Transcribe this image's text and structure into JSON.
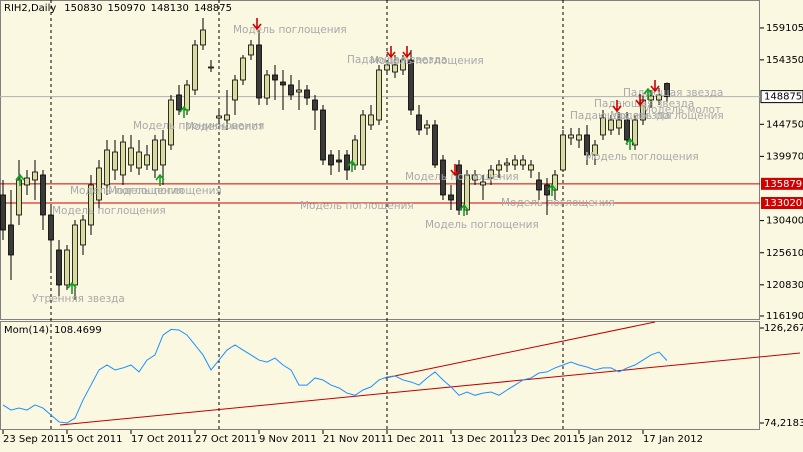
{
  "chart_data": [
    {
      "type": "candlestick",
      "title": "RIH2,Daily",
      "categories": [
        "23 Sep 2011",
        null,
        null,
        null,
        null,
        null,
        null,
        null,
        "5 Oct 2011",
        null,
        null,
        null,
        null,
        null,
        null,
        null,
        "17 Oct 2011",
        null,
        null,
        null,
        null,
        null,
        null,
        null,
        "27 Oct 2011",
        null,
        null,
        null,
        null,
        null,
        null,
        null,
        "9 Nov 2011",
        null,
        null,
        null,
        null,
        null,
        null,
        null,
        "21 Nov 2011",
        null,
        null,
        null,
        null,
        null,
        null,
        null,
        "1 Dec 2011",
        null,
        null,
        null,
        null,
        null,
        null,
        null,
        "13 Dec 2011",
        null,
        null,
        null,
        null,
        null,
        null,
        null,
        "23 Dec 2011",
        null,
        null,
        null,
        null,
        null,
        null,
        null,
        "5 Jan 2012",
        null,
        null,
        null,
        null,
        null,
        null,
        null,
        "17 Jan 2012",
        null,
        null,
        null
      ],
      "ohlc": [
        [
          134220,
          136450,
          127510,
          129000
        ],
        [
          129750,
          134960,
          121550,
          125280
        ],
        [
          131240,
          139430,
          129750,
          136450
        ],
        [
          135710,
          137940,
          134220,
          136750
        ],
        [
          136450,
          139430,
          133470,
          137640
        ],
        [
          137200,
          137940,
          129000,
          131240
        ],
        [
          131240,
          132730,
          123040,
          127510
        ],
        [
          126020,
          127510,
          118570,
          120810
        ],
        [
          120810,
          126770,
          120060,
          126020
        ],
        [
          120810,
          130490,
          118570,
          129750
        ],
        [
          126770,
          131240,
          125280,
          130490
        ],
        [
          129750,
          137200,
          128260,
          135710
        ],
        [
          133470,
          139430,
          131980,
          138240
        ],
        [
          135710,
          142410,
          134220,
          140920
        ],
        [
          137940,
          142410,
          136450,
          140620
        ],
        [
          137200,
          143160,
          135710,
          142110
        ],
        [
          138690,
          143160,
          137640,
          141220
        ],
        [
          138240,
          142410,
          137200,
          140620
        ],
        [
          138690,
          141670,
          137940,
          140180
        ],
        [
          137940,
          143160,
          136750,
          142410
        ],
        [
          138690,
          143900,
          135710,
          142410
        ],
        [
          141670,
          149120,
          140920,
          148370
        ],
        [
          149120,
          150610,
          146140,
          146880
        ],
        [
          146880,
          151350,
          146140,
          150610
        ],
        [
          149860,
          157310,
          149120,
          156570
        ],
        [
          156570,
          160590,
          155820,
          158800
        ],
        [
          153140,
          154330,
          152540,
          153290
        ],
        [
          145690,
          146880,
          144650,
          145990
        ],
        [
          145390,
          149860,
          143900,
          146140
        ],
        [
          148370,
          152100,
          146140,
          151350
        ],
        [
          151350,
          155080,
          150610,
          154630
        ],
        [
          155080,
          157310,
          154330,
          156570
        ],
        [
          156570,
          158800,
          147630,
          148670
        ],
        [
          148670,
          152840,
          147630,
          152100
        ],
        [
          152100,
          153590,
          148370,
          151350
        ],
        [
          151050,
          152840,
          146880,
          150610
        ],
        [
          150610,
          152100,
          148370,
          149120
        ],
        [
          149560,
          151350,
          146880,
          149860
        ],
        [
          149860,
          150610,
          147630,
          148670
        ],
        [
          148370,
          149120,
          143900,
          146880
        ],
        [
          146880,
          147630,
          138690,
          139430
        ],
        [
          140180,
          140920,
          137200,
          138690
        ],
        [
          139430,
          140920,
          137640,
          139130
        ],
        [
          140180,
          140920,
          136450,
          137940
        ],
        [
          138690,
          143160,
          137940,
          142410
        ],
        [
          138690,
          146880,
          137940,
          146140
        ],
        [
          144650,
          147630,
          143900,
          146140
        ],
        [
          145390,
          153590,
          144650,
          152840
        ],
        [
          152840,
          154330,
          152100,
          153590
        ],
        [
          152540,
          155080,
          151650,
          153590
        ],
        [
          152840,
          155080,
          152100,
          154330
        ],
        [
          154330,
          155820,
          146140,
          146880
        ],
        [
          146140,
          147630,
          143160,
          143900
        ],
        [
          144200,
          145390,
          143160,
          144650
        ],
        [
          144650,
          145390,
          138240,
          138690
        ],
        [
          139430,
          140180,
          133470,
          134220
        ],
        [
          134220,
          135710,
          131980,
          133470
        ],
        [
          138690,
          139430,
          131240,
          131980
        ],
        [
          131980,
          137940,
          131240,
          137200
        ],
        [
          136450,
          137940,
          135710,
          137200
        ],
        [
          135710,
          137200,
          133470,
          136150
        ],
        [
          136750,
          138690,
          135710,
          137940
        ],
        [
          137940,
          139430,
          136750,
          138690
        ],
        [
          138690,
          139730,
          137640,
          138980
        ],
        [
          138690,
          140180,
          137940,
          139430
        ],
        [
          138690,
          140180,
          137940,
          139430
        ],
        [
          137940,
          139430,
          136750,
          138690
        ],
        [
          136450,
          137640,
          133470,
          134960
        ],
        [
          135710,
          136750,
          131240,
          134220
        ],
        [
          134960,
          137940,
          133470,
          137200
        ],
        [
          137940,
          143900,
          137640,
          143160
        ],
        [
          142710,
          144200,
          141670,
          143160
        ],
        [
          142410,
          144200,
          141220,
          143160
        ],
        [
          143160,
          144650,
          138690,
          140180
        ],
        [
          140180,
          142410,
          138690,
          141670
        ],
        [
          143160,
          146880,
          142410,
          145690
        ],
        [
          143900,
          146140,
          143160,
          145390
        ],
        [
          144200,
          146580,
          143160,
          145390
        ],
        [
          145390,
          146580,
          141670,
          142410
        ],
        [
          141670,
          146140,
          140920,
          145390
        ],
        [
          145390,
          149120,
          144650,
          148370
        ],
        [
          148370,
          149860,
          147180,
          148970
        ],
        [
          148370,
          150160,
          147630,
          149120
        ],
        [
          150830,
          150970,
          148130,
          148875
        ]
      ],
      "up_color": "#d9dca0",
      "down_color": "#3a3a3a",
      "ylim": [
        115590,
        163270
      ],
      "yticks": [
        159105,
        154350,
        144750,
        139970,
        130400,
        125610,
        120830,
        116190
      ],
      "hlines": [
        {
          "value": 135879,
          "color": "#d00000"
        },
        {
          "value": 133020,
          "color": "#d00000"
        }
      ],
      "annotations": [
        "Утренняя звезда",
        "Модель поглощения",
        "Модель поглощения",
        "Модель поглощения",
        "Модель проникновения",
        "Модель молот",
        "Модель поглощения",
        "Модель поглощения",
        "Падающая звезда",
        "Модель поглощения",
        "Модель поглощения",
        "Модель поглощения",
        "Модель поглощения",
        "Падающая звезда",
        "Модель поглощения",
        "Падающая звезда",
        "Модель поглощения",
        "Падающая звезда",
        "Модель молот"
      ]
    },
    {
      "type": "line",
      "title": "Mom(14)",
      "color": "#1e8fff",
      "values": [
        84.1,
        81.3,
        82.4,
        81.3,
        84.1,
        82.4,
        78.6,
        74.8,
        74.2,
        76.9,
        86.8,
        95.0,
        103.3,
        106.0,
        103.3,
        104.4,
        106.0,
        102.2,
        108.7,
        111.5,
        122.4,
        125.5,
        125.2,
        122.4,
        117.0,
        111.5,
        103.3,
        108.7,
        114.2,
        117.0,
        114.2,
        111.5,
        108.7,
        107.6,
        109.8,
        106.0,
        103.3,
        95.0,
        95.0,
        98.9,
        97.8,
        95.0,
        93.4,
        90.6,
        89.4,
        92.3,
        94.0,
        97.8,
        99.4,
        100.0,
        97.8,
        96.7,
        95.0,
        98.9,
        102.2,
        97.8,
        94.0,
        89.4,
        91.2,
        89.4,
        90.6,
        91.2,
        89.4,
        92.3,
        95.0,
        97.8,
        98.9,
        101.6,
        102.2,
        104.4,
        106.0,
        107.6,
        106.0,
        104.9,
        103.3,
        104.4,
        104.4,
        102.2,
        104.4,
        106.0,
        108.7,
        111.5,
        113.1,
        108.4699
      ],
      "ylim": [
        70.38,
        129.56
      ],
      "yticks": [
        {
          "value": 126.2678,
          "label": "126,2678"
        },
        {
          "value": 74.2183,
          "label": "74,2183"
        }
      ]
    }
  ]
}
